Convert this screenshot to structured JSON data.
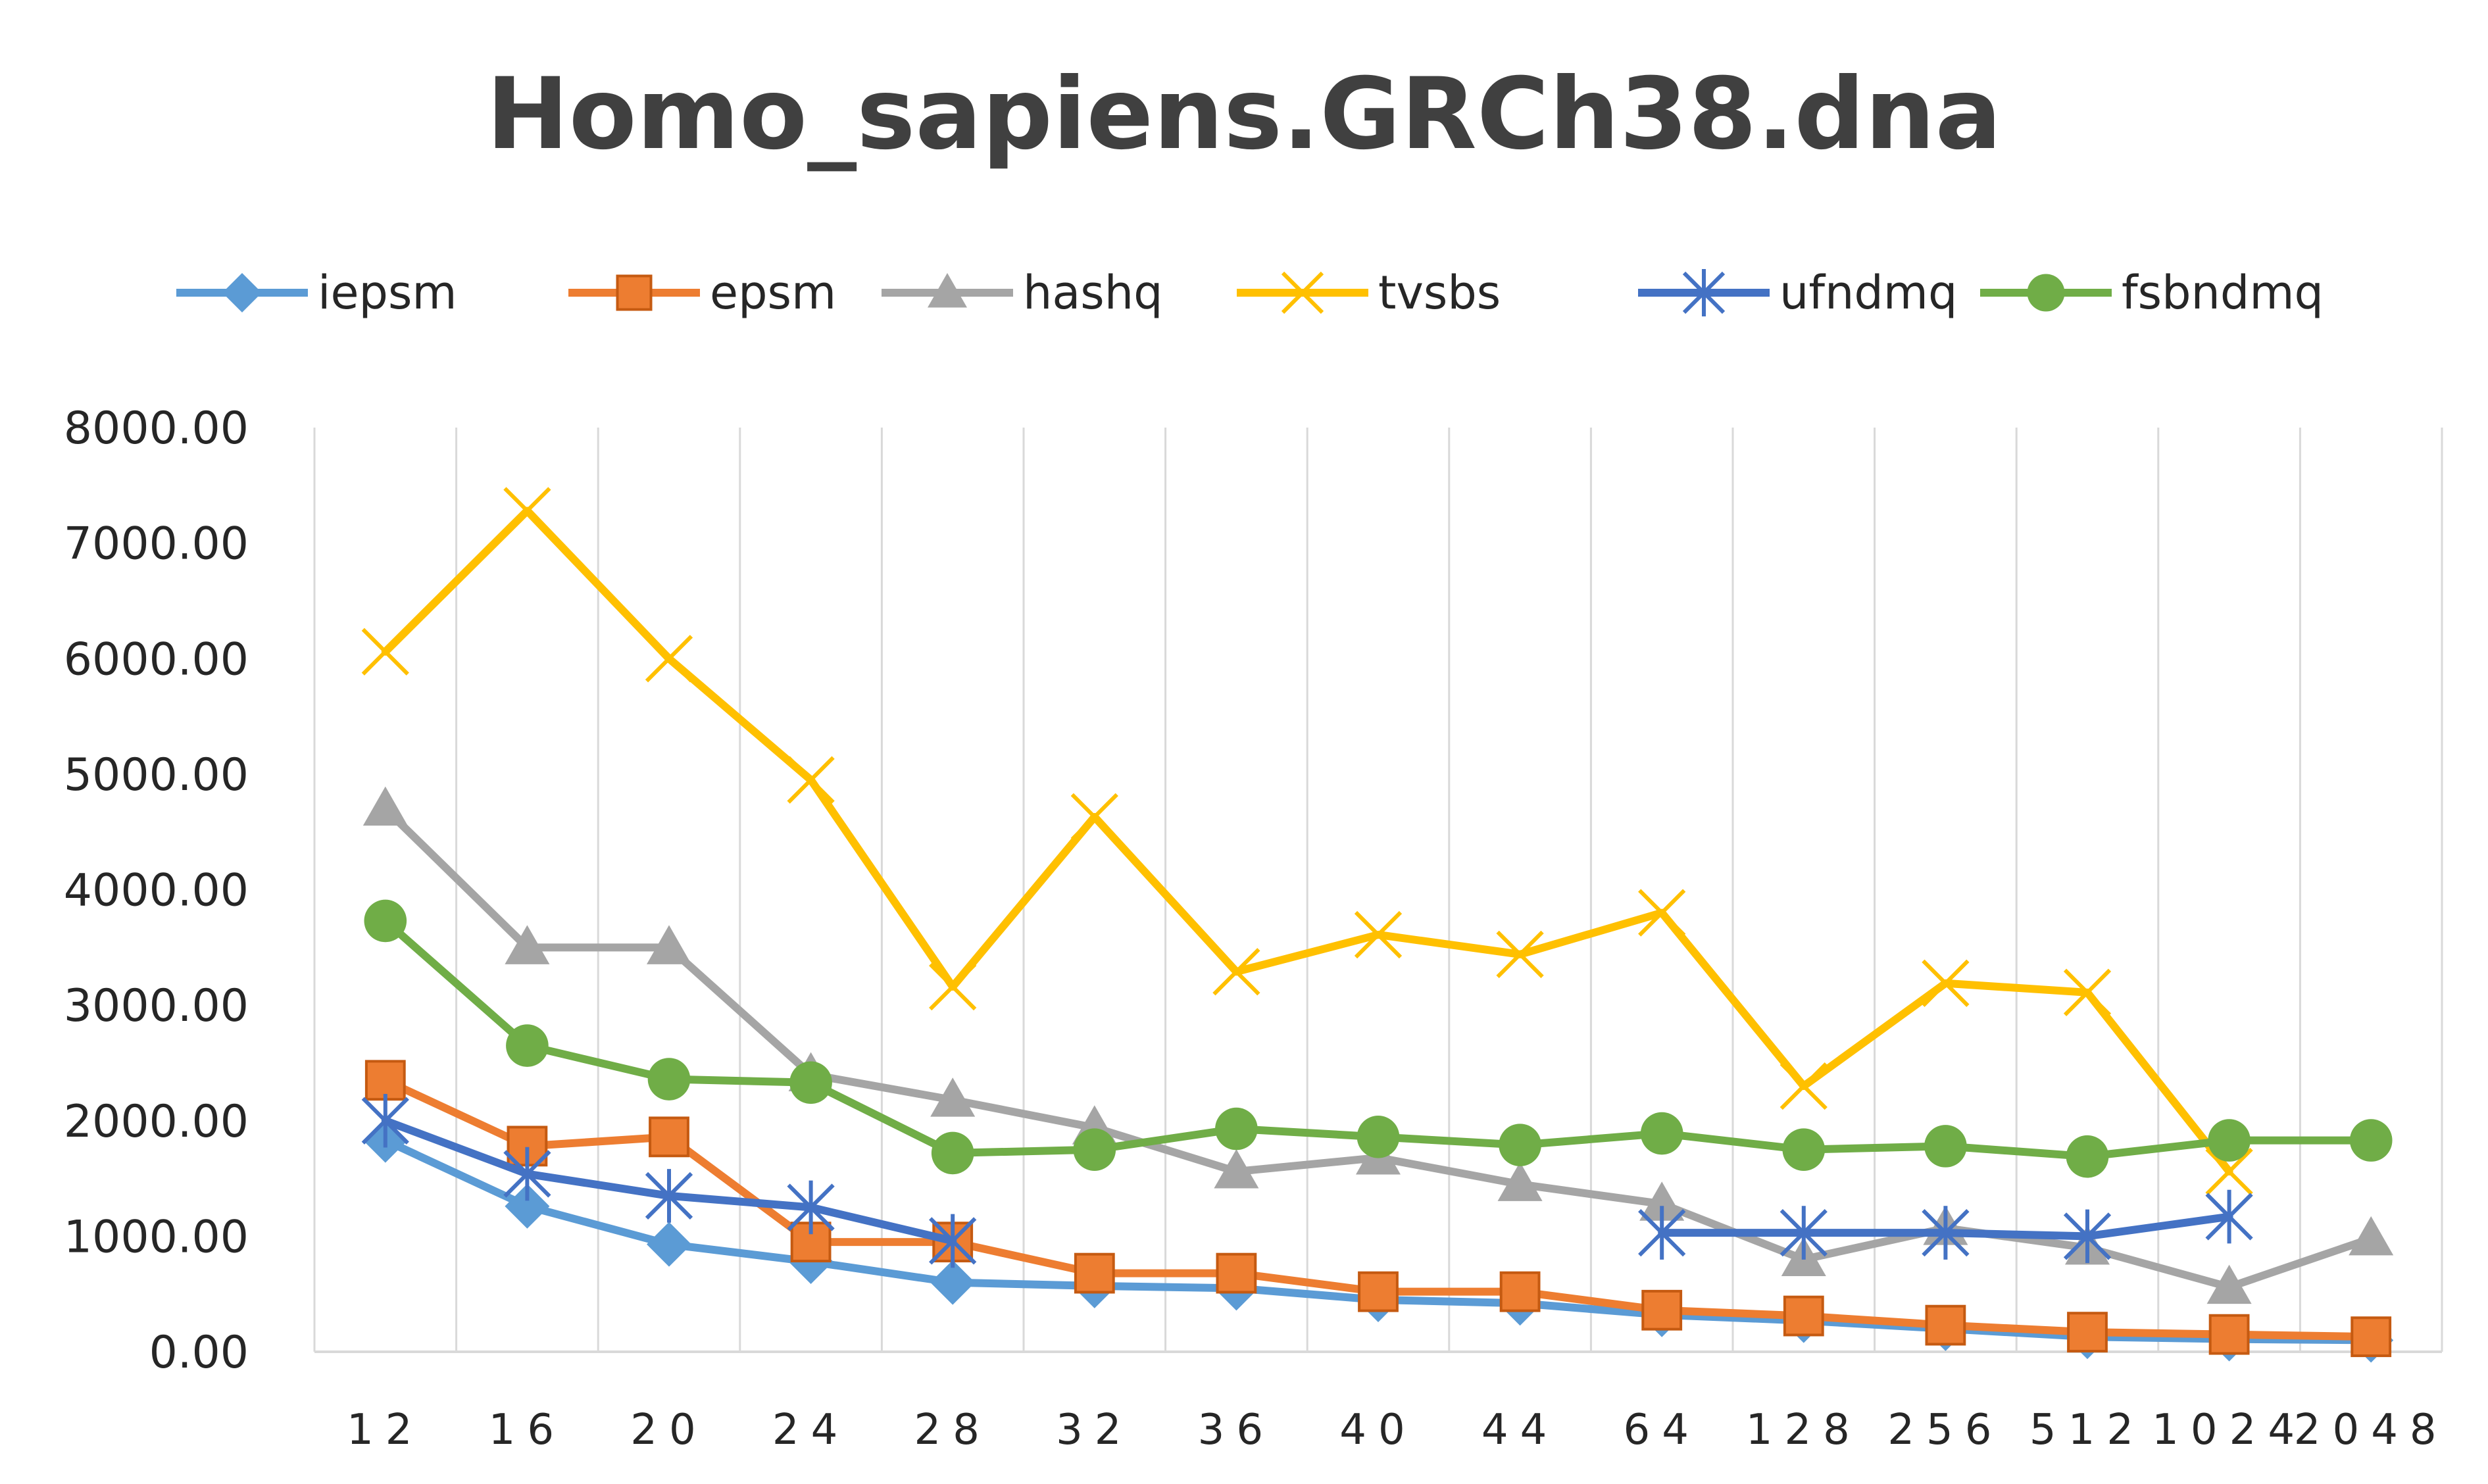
{
  "chart_data": {
    "type": "line",
    "title": "Homo_sapiens.GRCh38.dna",
    "xlabel": "",
    "ylabel": "",
    "categories": [
      "12",
      "16",
      "20",
      "24",
      "28",
      "32",
      "36",
      "40",
      "44",
      "64",
      "128",
      "256",
      "512",
      "1024",
      "2048"
    ],
    "ylim": [
      0,
      8000
    ],
    "yticks": [
      0,
      1000,
      2000,
      3000,
      4000,
      5000,
      6000,
      7000,
      8000
    ],
    "ytick_labels": [
      "0.00",
      "1000.00",
      "2000.00",
      "3000.00",
      "4000.00",
      "5000.00",
      "6000.00",
      "7000.00",
      "8000.00"
    ],
    "grid": "vertical",
    "legend_position": "top",
    "series": [
      {
        "name": "iepsm",
        "color": "#5B9BD5",
        "marker": "diamond",
        "values": [
          1830,
          1260,
          930,
          780,
          600,
          570,
          550,
          450,
          420,
          320,
          270,
          200,
          130,
          110,
          100
        ]
      },
      {
        "name": "epsm",
        "color": "#ED7D31",
        "marker": "square",
        "values": [
          2350,
          1780,
          1860,
          950,
          950,
          680,
          680,
          520,
          520,
          360,
          310,
          230,
          170,
          150,
          130
        ]
      },
      {
        "name": "hashq",
        "color": "#A5A5A5",
        "marker": "triangle",
        "values": [
          4700,
          3500,
          3500,
          2400,
          2180,
          1940,
          1560,
          1680,
          1450,
          1280,
          800,
          1070,
          900,
          560,
          980
        ]
      },
      {
        "name": "tvsbs",
        "color": "#FFC000",
        "marker": "x",
        "values": [
          6060,
          7280,
          6000,
          4950,
          3160,
          4630,
          3290,
          3610,
          3440,
          3800,
          2300,
          3190,
          3110,
          1560,
          null
        ]
      },
      {
        "name": "ufndmq",
        "color": "#4472C4",
        "marker": "asterisk",
        "values": [
          2000,
          1540,
          1350,
          1250,
          960,
          null,
          null,
          null,
          null,
          1030,
          1030,
          1030,
          1000,
          1170,
          null
        ]
      },
      {
        "name": "fsbndmq",
        "color": "#70AD47",
        "marker": "circle",
        "values": [
          3730,
          2650,
          2360,
          2330,
          1720,
          1750,
          1930,
          1860,
          1790,
          1890,
          1750,
          1780,
          1690,
          1830,
          1830
        ]
      }
    ]
  }
}
